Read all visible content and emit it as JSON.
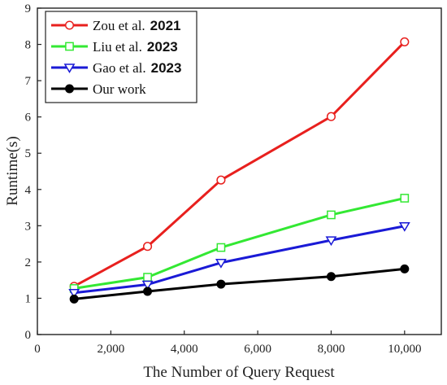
{
  "chart_data": {
    "type": "line",
    "xlabel": "The Number of Query Request",
    "ylabel": "Runtime(s)",
    "xlim": [
      0,
      11000
    ],
    "ylim": [
      0,
      9
    ],
    "xticks": [
      0,
      2000,
      4000,
      6000,
      8000,
      10000
    ],
    "xtick_labels": [
      "0",
      "2,000",
      "4,000",
      "6,000",
      "8,000",
      "10,000"
    ],
    "yticks": [
      0,
      1,
      2,
      3,
      4,
      5,
      6,
      7,
      8,
      9
    ],
    "ytick_labels": [
      "0",
      "1",
      "2",
      "3",
      "4",
      "5",
      "6",
      "7",
      "8",
      "9"
    ],
    "x": [
      1000,
      3000,
      5000,
      8000,
      10000
    ],
    "legend_position": "top-left",
    "grid": false,
    "series": [
      {
        "name": "Zou et al.",
        "year": "2021",
        "color": "#e8201e",
        "marker": "circle-open",
        "values": [
          1.33,
          2.43,
          4.26,
          6.01,
          8.07
        ]
      },
      {
        "name": "Liu et al.",
        "year": "2023",
        "color": "#33e833",
        "marker": "square-open",
        "values": [
          1.27,
          1.58,
          2.4,
          3.3,
          3.76
        ]
      },
      {
        "name": "Gao et al.",
        "year": "2023",
        "color": "#1a1ad6",
        "marker": "triangle-down-open",
        "values": [
          1.15,
          1.38,
          1.98,
          2.6,
          2.99
        ]
      },
      {
        "name": "Our work",
        "year": "",
        "color": "#000000",
        "marker": "circle-filled",
        "values": [
          0.98,
          1.19,
          1.39,
          1.6,
          1.81
        ]
      }
    ]
  }
}
